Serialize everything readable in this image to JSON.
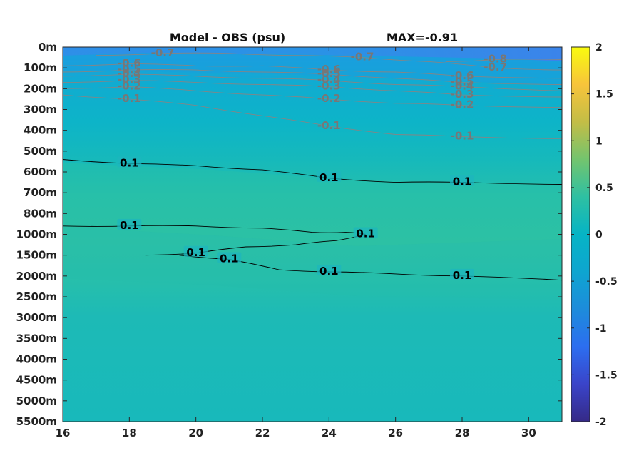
{
  "chart_data": {
    "type": "heatmap",
    "title": "Model - OBS (psu)",
    "subtitle": "MAX=-0.91",
    "xlabel": "",
    "ylabel": "",
    "xlim": [
      16,
      31
    ],
    "x_ticks": [
      "16",
      "18",
      "20",
      "22",
      "24",
      "26",
      "28",
      "30"
    ],
    "x_tick_values": [
      16,
      18,
      20,
      22,
      24,
      26,
      28,
      30
    ],
    "y_ticks": [
      "0m",
      "100m",
      "200m",
      "300m",
      "400m",
      "500m",
      "600m",
      "700m",
      "800m",
      "1000m",
      "1500m",
      "2000m",
      "2500m",
      "3000m",
      "3500m",
      "4000m",
      "4500m",
      "5000m",
      "5500m"
    ],
    "colorbar": {
      "range": [
        -2,
        2
      ],
      "ticks": [
        "2",
        "1.5",
        "1",
        "0.5",
        "0",
        "-0.5",
        "-1",
        "-1.5",
        "-2"
      ],
      "colormap": "parula"
    },
    "colors": {
      "surface": "#2f8ee8",
      "upper": "#10acd0",
      "mid": "#2cc0a6",
      "deep": "#19b9b9",
      "negative_contour": "#808080",
      "positive_contour": "#000000"
    },
    "contours": [
      {
        "level": -0.8,
        "label": "-0.8",
        "points": [
          [
            27.5,
            0.7
          ],
          [
            29,
            0.6
          ],
          [
            31,
            0.6
          ]
        ]
      },
      {
        "level": -0.7,
        "label": "-0.7",
        "points": [
          [
            17,
            0.4
          ],
          [
            19,
            0.3
          ],
          [
            21,
            0.3
          ],
          [
            23,
            0.4
          ],
          [
            25,
            0.5
          ],
          [
            27,
            0.7
          ],
          [
            29,
            1.0
          ],
          [
            31,
            1.1
          ]
        ]
      },
      {
        "level": -0.6,
        "label": "-0.6",
        "points": [
          [
            16,
            0.9
          ],
          [
            18,
            0.8
          ],
          [
            20,
            0.9
          ],
          [
            22,
            0.9
          ],
          [
            24,
            1.1
          ],
          [
            26,
            1.2
          ],
          [
            28,
            1.4
          ],
          [
            31,
            1.5
          ]
        ]
      },
      {
        "level": -0.5,
        "label": "-0.5",
        "points": [
          [
            16,
            1.2
          ],
          [
            18,
            1.1
          ],
          [
            20,
            1.1
          ],
          [
            22,
            1.2
          ],
          [
            24,
            1.3
          ],
          [
            26,
            1.5
          ],
          [
            28,
            1.7
          ],
          [
            31,
            1.8
          ]
        ]
      },
      {
        "level": -0.4,
        "label": "-0.4",
        "points": [
          [
            16,
            1.4
          ],
          [
            18,
            1.3
          ],
          [
            20,
            1.4
          ],
          [
            22,
            1.5
          ],
          [
            24,
            1.6
          ],
          [
            26,
            1.8
          ],
          [
            28,
            1.9
          ],
          [
            31,
            2.1
          ]
        ]
      },
      {
        "level": -0.3,
        "label": "-0.3",
        "points": [
          [
            16,
            1.7
          ],
          [
            18,
            1.6
          ],
          [
            20,
            1.7
          ],
          [
            22,
            1.8
          ],
          [
            24,
            1.9
          ],
          [
            26,
            2.1
          ],
          [
            28,
            2.3
          ],
          [
            31,
            2.4
          ]
        ]
      },
      {
        "level": -0.2,
        "label": "-0.2",
        "points": [
          [
            16,
            2.0
          ],
          [
            18,
            1.9
          ],
          [
            20,
            2.1
          ],
          [
            22,
            2.3
          ],
          [
            24,
            2.5
          ],
          [
            26,
            2.7
          ],
          [
            28,
            2.8
          ],
          [
            31,
            2.9
          ]
        ]
      },
      {
        "level": -0.1,
        "label": "-0.1",
        "points": [
          [
            16,
            2.3
          ],
          [
            18,
            2.5
          ],
          [
            20,
            2.8
          ],
          [
            22,
            3.3
          ],
          [
            24,
            3.8
          ],
          [
            26,
            4.2
          ],
          [
            28,
            4.3
          ],
          [
            31,
            4.4
          ]
        ]
      },
      {
        "level": 0.1,
        "label": "0.1",
        "points": [
          [
            16,
            5.4
          ],
          [
            18,
            5.6
          ],
          [
            20,
            5.7
          ],
          [
            22,
            5.9
          ],
          [
            24,
            6.3
          ],
          [
            26,
            6.5
          ],
          [
            28,
            6.5
          ],
          [
            31,
            6.6
          ]
        ]
      },
      {
        "level": 0.1,
        "label": "0.1",
        "points": [
          [
            16,
            8.6
          ],
          [
            18,
            8.6
          ],
          [
            20,
            8.6
          ],
          [
            22,
            8.7
          ],
          [
            23.5,
            8.9
          ],
          [
            24.5,
            8.9
          ],
          [
            25.1,
            9.0
          ],
          [
            24.2,
            9.3
          ],
          [
            23,
            9.5
          ],
          [
            21.5,
            9.6
          ],
          [
            20,
            9.9
          ],
          [
            18.5,
            10.0
          ]
        ]
      },
      {
        "level": 0.1,
        "label": "0.1",
        "points": [
          [
            19.5,
            10.0
          ],
          [
            21,
            10.2
          ],
          [
            22.5,
            10.7
          ],
          [
            24,
            10.8
          ],
          [
            26,
            10.9
          ],
          [
            28,
            11.0
          ],
          [
            31,
            11.2
          ]
        ]
      }
    ]
  }
}
